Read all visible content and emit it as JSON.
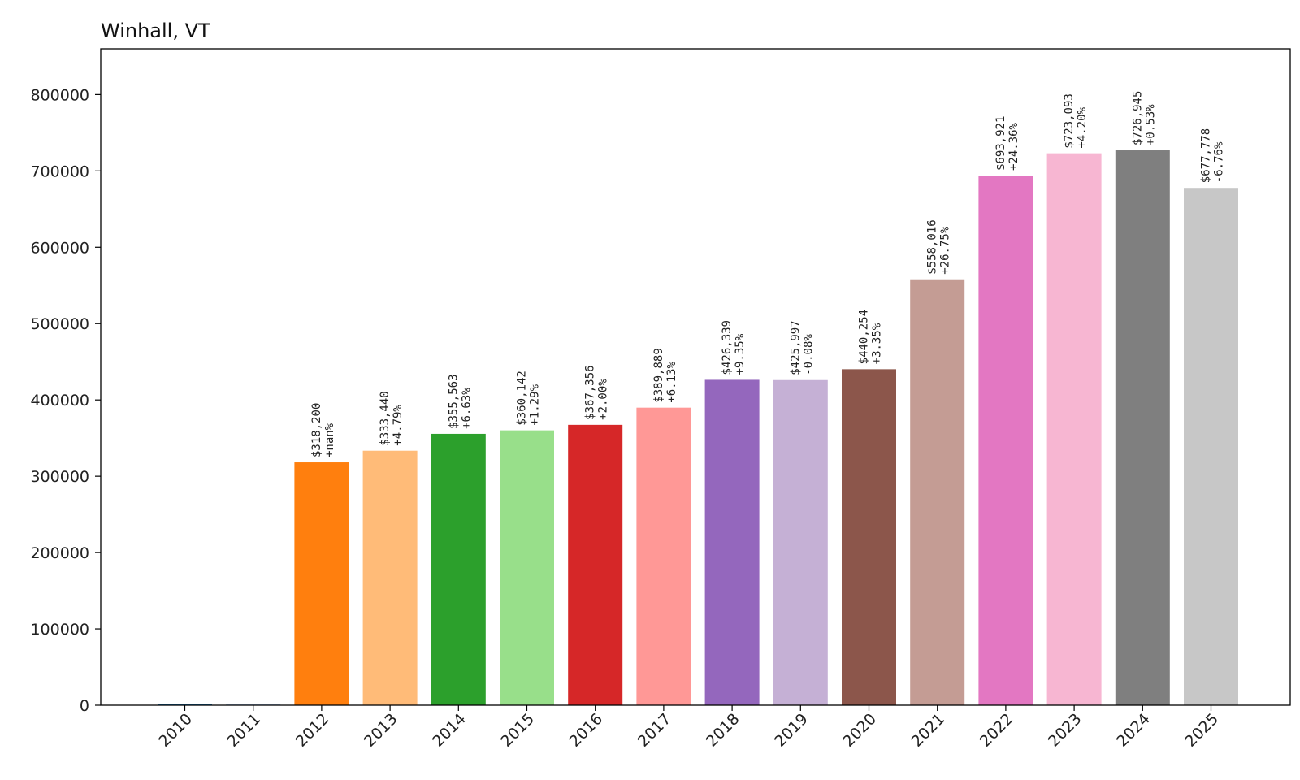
{
  "chart_data": {
    "type": "bar",
    "title": "Winhall, VT",
    "xlabel": "",
    "ylabel": "",
    "ylim": [
      0,
      860000
    ],
    "yticks": [
      0,
      100000,
      200000,
      300000,
      400000,
      500000,
      600000,
      700000,
      800000
    ],
    "ytick_labels": [
      "0",
      "100000",
      "200000",
      "300000",
      "400000",
      "500000",
      "600000",
      "700000",
      "800000"
    ],
    "categories": [
      "2010",
      "2011",
      "2012",
      "2013",
      "2014",
      "2015",
      "2016",
      "2017",
      "2018",
      "2019",
      "2020",
      "2021",
      "2022",
      "2023",
      "2024",
      "2025"
    ],
    "values": [
      0,
      0,
      318200,
      333440,
      355563,
      360142,
      367356,
      389889,
      426339,
      425997,
      440254,
      558016,
      693921,
      723093,
      726945,
      677778
    ],
    "value_labels": [
      "",
      "",
      "$318,200",
      "$333,440",
      "$355,563",
      "$360,142",
      "$367,356",
      "$389,889",
      "$426,339",
      "$425,997",
      "$440,254",
      "$558,016",
      "$693,921",
      "$723,093",
      "$726,945",
      "$677,778"
    ],
    "change_labels": [
      "",
      "",
      "+nan%",
      "+4.79%",
      "+6.63%",
      "+1.29%",
      "+2.00%",
      "+6.13%",
      "+9.35%",
      "-0.08%",
      "+3.35%",
      "+26.75%",
      "+24.36%",
      "+4.20%",
      "+0.53%",
      "-6.76%"
    ],
    "colors": [
      "#1f77b4",
      "#aec7e8",
      "#ff7f0e",
      "#ffbb78",
      "#2ca02c",
      "#98df8a",
      "#d62728",
      "#ff9896",
      "#9467bd",
      "#c5b0d5",
      "#8c564b",
      "#c49c94",
      "#e377c2",
      "#f7b6d2",
      "#7f7f7f",
      "#c7c7c7"
    ]
  }
}
